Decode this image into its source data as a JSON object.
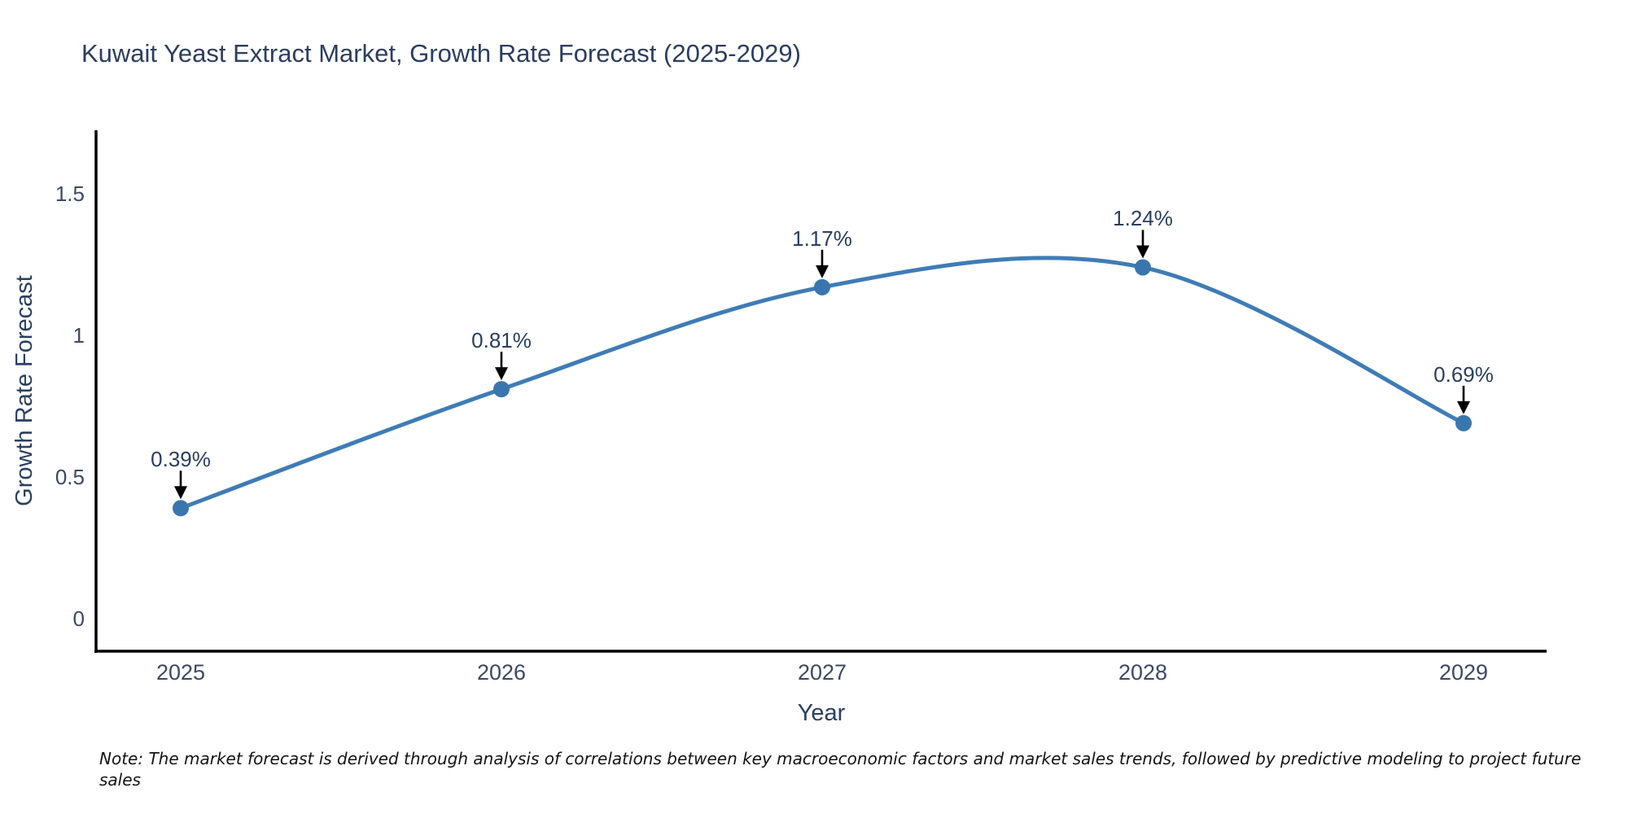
{
  "title": "Kuwait Yeast Extract Market, Growth Rate Forecast (2025-2029)",
  "note": "Note: The market forecast is derived through analysis of correlations between key macroeconomic factors and market sales trends, followed by predictive modeling to project future sales",
  "chart_data": {
    "type": "line",
    "title": "Kuwait Yeast Extract Market, Growth Rate Forecast (2025-2029)",
    "xlabel": "Year",
    "ylabel": "Growth Rate Forecast",
    "categories": [
      "2025",
      "2026",
      "2027",
      "2028",
      "2029"
    ],
    "values": [
      0.39,
      0.81,
      1.17,
      1.24,
      0.69
    ],
    "point_labels": [
      "0.39%",
      "0.81%",
      "1.17%",
      "1.24%",
      "0.69%"
    ],
    "ytick_labels": [
      "0",
      "0.5",
      "1",
      "1.5"
    ],
    "ytick_values": [
      0,
      0.5,
      1,
      1.5
    ],
    "ylim": [
      -0.12,
      1.72
    ],
    "line_shape": "spline",
    "grid": false,
    "legend_position": "none",
    "annotations_have_arrows": true,
    "colors": {
      "line": "#3f7cb6",
      "marker": "#3a76ae",
      "arrow": "#000000",
      "axis": "#000000",
      "label_text": "#2a3f5f",
      "title_text": "#2c3e5f",
      "note_text": "#141414"
    }
  }
}
